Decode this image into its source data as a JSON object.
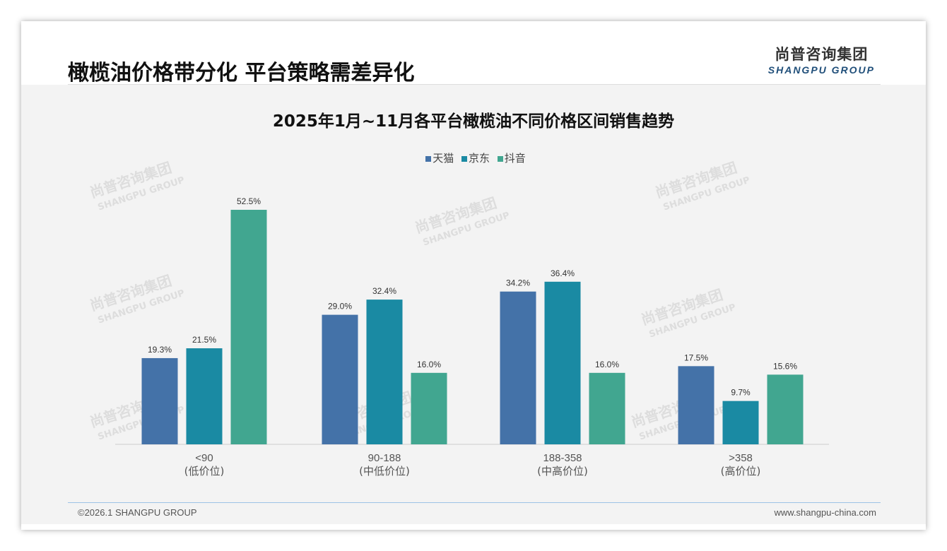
{
  "header": {
    "title": "橄榄油价格带分化 平台策略需差异化",
    "logo_cn": "尚普咨询集团",
    "logo_en": "SHANGPU GROUP"
  },
  "footer": {
    "copyright": "©2026.1 SHANGPU GROUP",
    "website": "www.shangpu-china.com"
  },
  "chart_data": {
    "type": "bar",
    "title": "2025年1月~11月各平台橄榄油不同价格区间销售趋势",
    "categories": [
      "<90",
      "90-188",
      "188-358",
      ">358"
    ],
    "category_sublabels": [
      "(低价位)",
      "(中低价位)",
      "(中高价位)",
      "(高价位)"
    ],
    "series": [
      {
        "name": "天猫",
        "color": "#4472a8",
        "values": [
          19.3,
          29.0,
          34.2,
          17.5
        ]
      },
      {
        "name": "京东",
        "color": "#1a8aa3",
        "values": [
          21.5,
          32.4,
          36.4,
          9.7
        ]
      },
      {
        "name": "抖音",
        "color": "#41a690",
        "values": [
          52.5,
          16.0,
          16.0,
          15.6
        ]
      }
    ],
    "unit": "%",
    "ylim": [
      0,
      60
    ],
    "legend": "top-center",
    "grid": false
  }
}
